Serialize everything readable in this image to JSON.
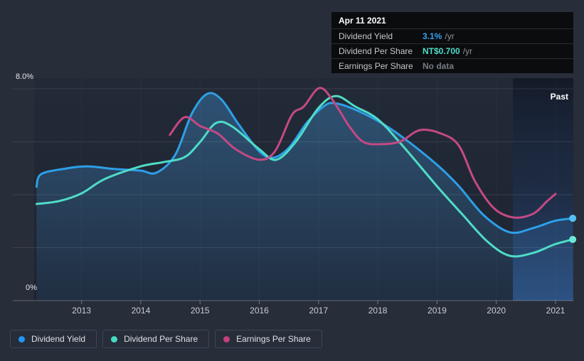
{
  "page": {
    "background": "#272d39"
  },
  "tooltip": {
    "date": "Apr 11 2021",
    "rows": [
      {
        "label": "Dividend Yield",
        "value": "3.1%",
        "suffix": "/yr",
        "color": "#35a2ec"
      },
      {
        "label": "Dividend Per Share",
        "value": "NT$0.700",
        "suffix": "/yr",
        "color": "#4fdcc7"
      },
      {
        "label": "Earnings Per Share",
        "value": "No data",
        "suffix": "",
        "color": "#767d85"
      }
    ]
  },
  "axis_labels": {
    "y_top": "8.0%",
    "y_bottom": "0%",
    "past": "Past"
  },
  "legend": [
    {
      "label": "Dividend Yield",
      "color": "#2196f3"
    },
    {
      "label": "Dividend Per Share",
      "color": "#45dbc3"
    },
    {
      "label": "Earnings Per Share",
      "color": "#c2407e"
    }
  ],
  "chart_data": {
    "type": "line",
    "title": "Past dividend and earnings history with tooltip at Apr 11 2021",
    "x_axis": {
      "range": [
        2012.2,
        2021.3
      ],
      "ticks": [
        2013,
        2014,
        2015,
        2016,
        2017,
        2018,
        2019,
        2020,
        2021
      ]
    },
    "y_axis": {
      "unit": "%",
      "range": [
        0,
        8
      ],
      "gridlines": [
        0,
        2,
        4,
        6,
        8
      ],
      "shown_labels": [
        "8.0%",
        "0%"
      ]
    },
    "past_region_start": 2020.28,
    "legend_position": "bottom-left",
    "note": "Dividend Per Share and Earnings Per Share are drawn on hidden scales; their values below are chart positions read against the visible 0-8% axis. Tooltip: DPS = NT$0.700/yr, EPS = No data at Apr 11 2021.",
    "series": [
      {
        "name": "Dividend Yield",
        "color": "#2da0e8",
        "dot_color": "#54c0f5",
        "area": true,
        "end_marker": true,
        "x": [
          2012.24,
          2012.32,
          2012.74,
          2013.1,
          2013.57,
          2014.0,
          2014.26,
          2014.58,
          2014.86,
          2015.12,
          2015.36,
          2015.65,
          2016.0,
          2016.24,
          2016.51,
          2016.81,
          2017.1,
          2017.26,
          2017.56,
          2018.0,
          2018.42,
          2019.0,
          2019.37,
          2019.79,
          2020.23,
          2020.62,
          2020.98,
          2021.29
        ],
        "values": [
          4.3,
          4.78,
          4.99,
          5.07,
          4.97,
          4.91,
          4.83,
          5.5,
          7.06,
          7.81,
          7.6,
          6.66,
          5.64,
          5.4,
          5.8,
          6.74,
          7.36,
          7.46,
          7.27,
          6.79,
          6.17,
          5.13,
          4.32,
          3.22,
          2.58,
          2.74,
          3.01,
          3.11
        ]
      },
      {
        "name": "Dividend Per Share",
        "color": "#4fdcc7",
        "dot_color": "#6ae8d6",
        "area": false,
        "end_marker": true,
        "x": [
          2012.24,
          2012.62,
          2013.0,
          2013.39,
          2014.0,
          2014.38,
          2014.74,
          2015.0,
          2015.27,
          2015.54,
          2016.0,
          2016.29,
          2016.63,
          2016.99,
          2017.29,
          2017.62,
          2018.0,
          2018.42,
          2019.0,
          2019.43,
          2019.85,
          2020.23,
          2020.62,
          2020.98,
          2021.29
        ],
        "values": [
          3.65,
          3.76,
          4.05,
          4.59,
          5.07,
          5.23,
          5.42,
          5.99,
          6.71,
          6.58,
          5.72,
          5.32,
          6.04,
          7.25,
          7.73,
          7.33,
          6.85,
          5.85,
          4.32,
          3.25,
          2.23,
          1.69,
          1.8,
          2.12,
          2.31
        ]
      },
      {
        "name": "Earnings Per Share",
        "color": "#c44985",
        "dot_color": "#c44985",
        "area": false,
        "end_marker": false,
        "x": [
          2014.49,
          2014.74,
          2015.0,
          2015.3,
          2015.6,
          2016.0,
          2016.27,
          2016.55,
          2016.75,
          2017.01,
          2017.23,
          2017.52,
          2017.76,
          2018.06,
          2018.38,
          2018.71,
          2019.07,
          2019.37,
          2019.64,
          2019.96,
          2020.29,
          2020.62,
          2020.86,
          2021.0
        ],
        "values": [
          6.26,
          6.93,
          6.6,
          6.31,
          5.72,
          5.32,
          5.66,
          7.01,
          7.33,
          8.03,
          7.6,
          6.58,
          5.99,
          5.91,
          6.01,
          6.44,
          6.31,
          5.85,
          4.51,
          3.49,
          3.14,
          3.28,
          3.76,
          4.03
        ]
      }
    ]
  }
}
